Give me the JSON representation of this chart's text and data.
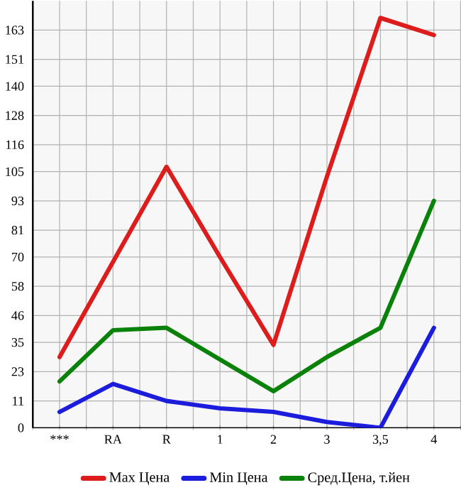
{
  "chart_data": {
    "type": "line",
    "categories": [
      "***",
      "RA",
      "R",
      "1",
      "2",
      "3",
      "3,5",
      "4"
    ],
    "series": [
      {
        "name": "Max Цена",
        "color": "#dd1c1c",
        "values": [
          29,
          68,
          107,
          70,
          34,
          103,
          168,
          161
        ]
      },
      {
        "name": "Min Цена",
        "color": "#1c1cdd",
        "values": [
          6.5,
          18,
          11,
          8,
          6.5,
          2.4,
          0,
          41
        ]
      },
      {
        "name": "Сред.Цена, т.йен",
        "color": "#0a820a",
        "values": [
          19,
          40,
          41,
          28,
          15,
          29,
          41,
          93
        ]
      }
    ],
    "ylim": [
      0,
      175
    ],
    "yticks": [
      0,
      11,
      23,
      35,
      46,
      58,
      70,
      81,
      93,
      105,
      116,
      128,
      140,
      151,
      163
    ],
    "grid": true,
    "legend": "bottom",
    "marker": "none",
    "line_style": "solid"
  }
}
